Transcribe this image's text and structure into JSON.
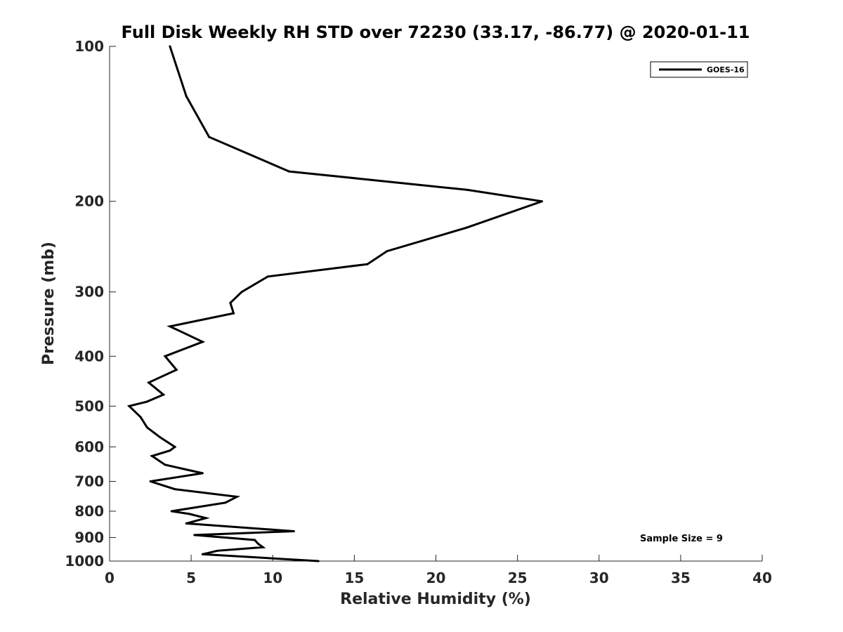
{
  "chart_data": {
    "type": "line",
    "title": "Full Disk Weekly RH STD over 72230 (33.17, -86.77) @ 2020-01-11",
    "xlabel": "Relative Humidity (%)",
    "ylabel": "Pressure (mb)",
    "xlim": [
      0,
      40
    ],
    "ylim": [
      100,
      1000
    ],
    "y_scale": "log",
    "y_reversed": true,
    "x_ticks": [
      "0",
      "5",
      "10",
      "15",
      "20",
      "25",
      "30",
      "35",
      "40"
    ],
    "y_ticks": [
      "100",
      "200",
      "300",
      "400",
      "500",
      "600",
      "700",
      "800",
      "900",
      "1000"
    ],
    "legend": {
      "position": "top-right",
      "entries": [
        "GOES-16"
      ]
    },
    "annotation": "Sample Size = 9",
    "series": [
      {
        "name": "GOES-16",
        "color": "#000000",
        "points": [
          [
            3.7,
            100
          ],
          [
            4.7,
            125
          ],
          [
            6.1,
            150
          ],
          [
            11.0,
            175
          ],
          [
            21.9,
            190
          ],
          [
            26.5,
            200
          ],
          [
            21.9,
            225
          ],
          [
            17.0,
            250
          ],
          [
            15.8,
            265
          ],
          [
            9.7,
            280
          ],
          [
            8.1,
            300
          ],
          [
            7.4,
            315
          ],
          [
            7.6,
            330
          ],
          [
            3.7,
            350
          ],
          [
            5.7,
            375
          ],
          [
            3.4,
            400
          ],
          [
            4.1,
            425
          ],
          [
            2.4,
            450
          ],
          [
            3.3,
            475
          ],
          [
            2.3,
            490
          ],
          [
            1.2,
            500
          ],
          [
            1.9,
            525
          ],
          [
            2.3,
            550
          ],
          [
            3.1,
            575
          ],
          [
            4.0,
            600
          ],
          [
            3.7,
            610
          ],
          [
            2.6,
            625
          ],
          [
            3.4,
            650
          ],
          [
            5.7,
            675
          ],
          [
            2.5,
            700
          ],
          [
            4.0,
            725
          ],
          [
            7.8,
            750
          ],
          [
            7.1,
            770
          ],
          [
            3.8,
            800
          ],
          [
            4.9,
            810
          ],
          [
            5.9,
            825
          ],
          [
            4.7,
            845
          ],
          [
            11.3,
            875
          ],
          [
            5.2,
            890
          ],
          [
            8.9,
            910
          ],
          [
            9.1,
            925
          ],
          [
            9.4,
            940
          ],
          [
            6.6,
            955
          ],
          [
            5.7,
            970
          ],
          [
            12.8,
            1000
          ]
        ]
      }
    ]
  }
}
